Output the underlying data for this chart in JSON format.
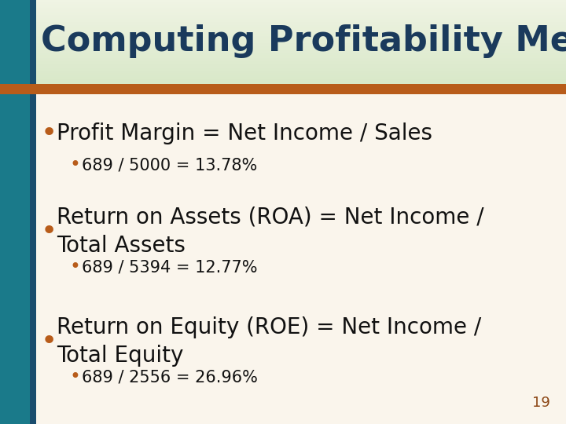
{
  "title": "Computing Profitability Measures",
  "title_color": "#1a3a5c",
  "title_fontsize": 32,
  "left_bar_color": "#1a7a8a",
  "left_bar2_color": "#1a4d6e",
  "orange_bar_color": "#b85c1a",
  "body_bg_color": "#faf5ec",
  "header_color_top": "#c8d4b8",
  "header_color_bottom": "#eef2e0",
  "slide_number": "19",
  "slide_number_color": "#8b4513",
  "bullet_color": "#b85c1a",
  "text_color": "#111111",
  "main_bullet_fontsize": 20,
  "sub_bullet_fontsize": 15,
  "main_bullets": [
    {
      "text": "Profit Margin = Net Income / Sales",
      "sub": "689 / 5000 = 13.78%"
    },
    {
      "text": "Return on Assets (ROA) = Net Income /\nTotal Assets",
      "sub": "689 / 5394 = 12.77%"
    },
    {
      "text": "Return on Equity (ROE) = Net Income /\nTotal Equity",
      "sub": "689 / 2556 = 26.96%"
    }
  ]
}
